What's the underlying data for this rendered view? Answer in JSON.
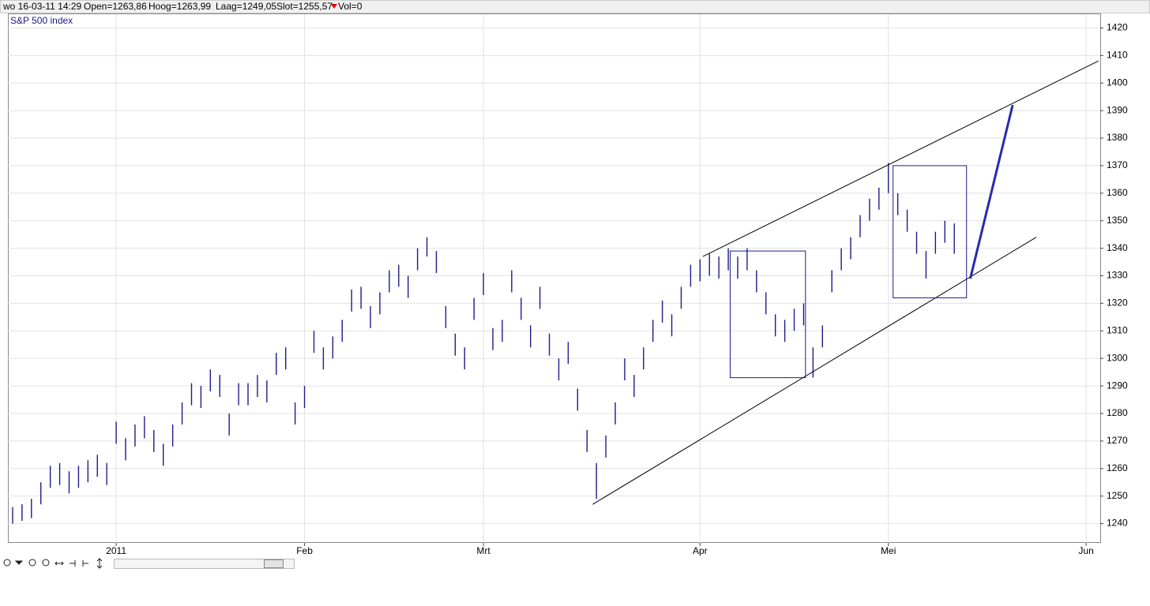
{
  "status": [
    "wo 16-03-11 14:29",
    "Open=1263,86",
    "Hoog=1263,99",
    "Laag=1249,05",
    "Slot=1255,57",
    "Vol=0"
  ],
  "chart_data": {
    "type": "ohlc",
    "categories": [
      null,
      null,
      null,
      null,
      null,
      null,
      null,
      null,
      null,
      null,
      null,
      "2011",
      null,
      null,
      null,
      null,
      null,
      null,
      null,
      null,
      null,
      null,
      null,
      null,
      null,
      null,
      null,
      null,
      null,
      null,
      null,
      "Feb",
      null,
      null,
      null,
      null,
      null,
      null,
      null,
      null,
      null,
      null,
      null,
      null,
      null,
      null,
      null,
      null,
      null,
      null,
      "Mrt",
      null,
      null,
      null,
      null,
      null,
      null,
      null,
      null,
      null,
      null,
      null,
      null,
      null,
      null,
      null,
      null,
      null,
      null,
      null,
      null,
      null,
      null,
      "Apr",
      null,
      null,
      null,
      null,
      null,
      null,
      null,
      null,
      null,
      null,
      null,
      null,
      null,
      null,
      null,
      null,
      null,
      null,
      null,
      "Mei",
      null,
      null,
      null,
      null,
      null,
      null,
      null,
      null,
      null,
      null,
      null,
      null,
      null,
      null,
      null,
      null,
      null,
      null,
      null,
      null,
      "Jun",
      null
    ],
    "series": [
      {
        "name": "S&P 500 index",
        "color": "#1c1c8a",
        "high": [
          1246,
          1247,
          1249,
          1255,
          1261,
          1262,
          1259,
          1261,
          1263,
          1265,
          1262,
          1277,
          1271,
          1276,
          1279,
          1274,
          1269,
          1276,
          1284,
          1291,
          1290,
          1296,
          1294,
          1280,
          1291,
          1291,
          1294,
          1292,
          1302,
          1304,
          1284,
          1290,
          1310,
          1304,
          1308,
          1314,
          1325,
          1326,
          1319,
          1324,
          1332,
          1334,
          1330,
          1340,
          1344,
          1339,
          1319,
          1309,
          1304,
          1322,
          1331,
          1311,
          1314,
          1332,
          1322,
          1312,
          1326,
          1309,
          1300,
          1306,
          1289,
          1274,
          1262,
          1272,
          1284,
          1300,
          1294,
          1304,
          1314,
          1321,
          1316,
          1326,
          1334,
          1336,
          1338,
          1337,
          1340,
          1337,
          1340,
          1332,
          1324,
          1316,
          1314,
          1318,
          1320,
          1304,
          1312,
          1332,
          1340,
          1344,
          1352,
          1358,
          1362,
          1371,
          1360,
          1354,
          1346,
          1339,
          1346,
          1350,
          1349,
          null,
          null,
          null,
          null,
          null,
          null,
          null,
          null,
          null,
          null,
          null,
          null,
          null,
          null,
          null
        ],
        "low": [
          1240,
          1241,
          1242,
          1247,
          1253,
          1254,
          1251,
          1253,
          1255,
          1257,
          1254,
          1269,
          1263,
          1268,
          1271,
          1266,
          1261,
          1268,
          1276,
          1283,
          1282,
          1288,
          1286,
          1272,
          1283,
          1283,
          1286,
          1284,
          1294,
          1296,
          1276,
          1282,
          1302,
          1296,
          1300,
          1306,
          1317,
          1318,
          1311,
          1316,
          1324,
          1326,
          1322,
          1332,
          1337,
          1331,
          1311,
          1301,
          1296,
          1314,
          1323,
          1303,
          1306,
          1324,
          1314,
          1304,
          1318,
          1301,
          1292,
          1298,
          1281,
          1266,
          1249,
          1264,
          1276,
          1292,
          1286,
          1296,
          1306,
          1313,
          1308,
          1318,
          1326,
          1328,
          1330,
          1329,
          1332,
          1329,
          1332,
          1324,
          1316,
          1308,
          1306,
          1310,
          1312,
          1293,
          1304,
          1324,
          1332,
          1336,
          1344,
          1350,
          1354,
          1360,
          1352,
          1346,
          1338,
          1329,
          1338,
          1342,
          1338,
          null,
          null,
          null,
          null,
          null,
          null,
          null,
          null,
          null,
          null,
          null,
          null,
          null,
          null,
          null
        ]
      }
    ],
    "drawings": [
      {
        "kind": "line",
        "color": "#000000",
        "x": [
          61.6,
          108.7
        ],
        "y": [
          1247,
          1344
        ]
      },
      {
        "kind": "line",
        "color": "#000000",
        "x": [
          73.3,
          115.3
        ],
        "y": [
          1337,
          1408
        ]
      },
      {
        "kind": "box",
        "color": "#1c1c8a",
        "x": [
          76.2,
          84.2
        ],
        "y": [
          1339,
          1293
        ]
      },
      {
        "kind": "box",
        "color": "#1c1c8a",
        "x": [
          93.5,
          101.3
        ],
        "y": [
          1370,
          1322
        ]
      },
      {
        "kind": "arrow",
        "color": "#2a2ab0",
        "x": [
          101.7,
          106.2
        ],
        "y": [
          1329,
          1392
        ]
      }
    ],
    "ylim": [
      1233,
      1425
    ],
    "yticks": [
      1240,
      1250,
      1260,
      1270,
      1280,
      1290,
      1300,
      1310,
      1320,
      1330,
      1340,
      1350,
      1360,
      1370,
      1380,
      1390,
      1400,
      1410,
      1420
    ],
    "grid": true
  }
}
